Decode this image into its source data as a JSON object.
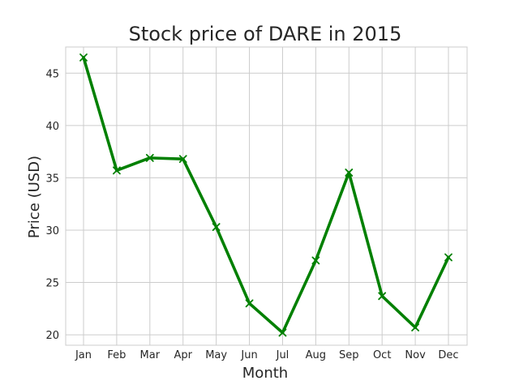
{
  "chart_data": {
    "type": "line",
    "title": "Stock price of DARE in 2015",
    "xlabel": "Month",
    "ylabel": "Price (USD)",
    "categories": [
      "Jan",
      "Feb",
      "Mar",
      "Apr",
      "May",
      "Jun",
      "Jul",
      "Aug",
      "Sep",
      "Oct",
      "Nov",
      "Dec"
    ],
    "series": [
      {
        "values": [
          46.5,
          35.7,
          36.9,
          36.8,
          30.3,
          23.0,
          20.2,
          27.1,
          35.5,
          23.7,
          20.7,
          27.4
        ],
        "color": "#008000",
        "marker": "x"
      }
    ],
    "ylim": [
      19.0,
      47.5
    ],
    "yticks": [
      20,
      25,
      30,
      35,
      40,
      45
    ],
    "grid": true,
    "legend": "none"
  }
}
